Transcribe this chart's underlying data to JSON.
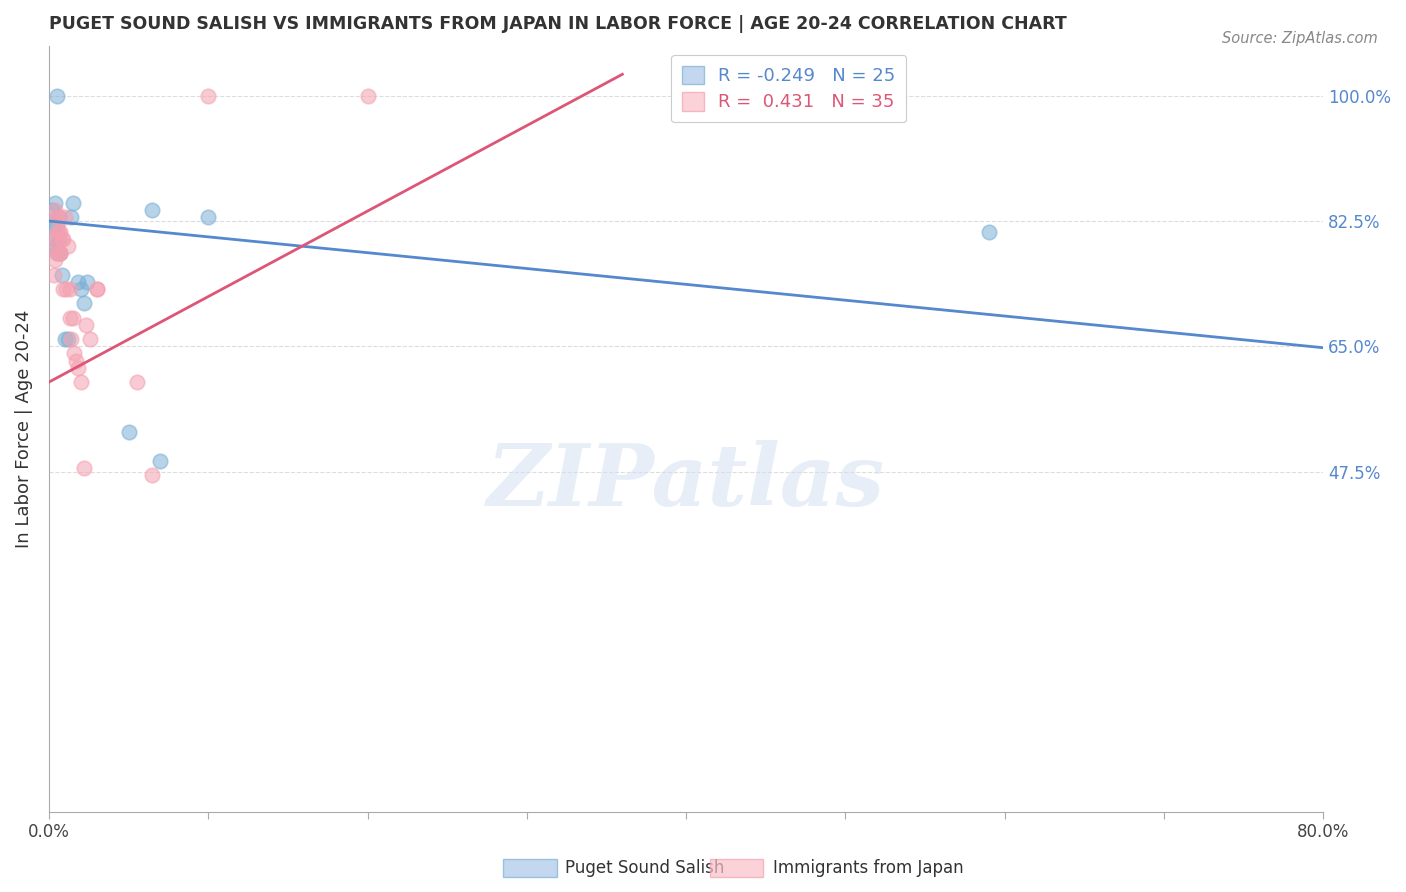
{
  "title": "PUGET SOUND SALISH VS IMMIGRANTS FROM JAPAN IN LABOR FORCE | AGE 20-24 CORRELATION CHART",
  "source": "Source: ZipAtlas.com",
  "ylabel": "In Labor Force | Age 20-24",
  "xlim": [
    0.0,
    0.8
  ],
  "ylim": [
    0.0,
    1.07
  ],
  "xticks": [
    0.0,
    0.1,
    0.2,
    0.3,
    0.4,
    0.5,
    0.6,
    0.7,
    0.8
  ],
  "xticklabels": [
    "0.0%",
    "",
    "",
    "",
    "",
    "",
    "",
    "",
    "80.0%"
  ],
  "ytick_positions": [
    0.475,
    0.65,
    0.825,
    1.0
  ],
  "ytick_labels": [
    "47.5%",
    "65.0%",
    "82.5%",
    "100.0%"
  ],
  "grid_color": "#dddddd",
  "background_color": "#ffffff",
  "watermark": "ZIPatlas",
  "blue_color": "#7bafd4",
  "pink_color": "#f4a0b0",
  "blue_line_color": "#5588cc",
  "pink_line_color": "#dd5577",
  "legend_blue_R": "-0.249",
  "legend_blue_N": "25",
  "legend_pink_R": "0.431",
  "legend_pink_N": "35",
  "blue_scatter_x": [
    0.002,
    0.003,
    0.003,
    0.004,
    0.004,
    0.005,
    0.005,
    0.006,
    0.006,
    0.007,
    0.008,
    0.01,
    0.012,
    0.014,
    0.015,
    0.018,
    0.02,
    0.022,
    0.024,
    0.05,
    0.065,
    0.07,
    0.1,
    0.59,
    0.005
  ],
  "blue_scatter_y": [
    0.84,
    0.82,
    0.8,
    0.79,
    0.85,
    0.82,
    0.78,
    0.8,
    0.83,
    0.78,
    0.75,
    0.66,
    0.66,
    0.83,
    0.85,
    0.74,
    0.73,
    0.71,
    0.74,
    0.53,
    0.84,
    0.49,
    0.83,
    0.81,
    1.0
  ],
  "pink_scatter_x": [
    0.002,
    0.003,
    0.004,
    0.004,
    0.004,
    0.005,
    0.005,
    0.005,
    0.006,
    0.006,
    0.007,
    0.007,
    0.007,
    0.008,
    0.009,
    0.009,
    0.01,
    0.011,
    0.012,
    0.013,
    0.013,
    0.014,
    0.015,
    0.016,
    0.017,
    0.018,
    0.02,
    0.022,
    0.023,
    0.026,
    0.03,
    0.03,
    0.055,
    0.065,
    0.1
  ],
  "pink_scatter_y": [
    0.79,
    0.75,
    0.84,
    0.8,
    0.77,
    0.83,
    0.81,
    0.78,
    0.83,
    0.81,
    0.78,
    0.81,
    0.78,
    0.8,
    0.73,
    0.8,
    0.83,
    0.73,
    0.79,
    0.69,
    0.73,
    0.66,
    0.69,
    0.64,
    0.63,
    0.62,
    0.6,
    0.48,
    0.68,
    0.66,
    0.73,
    0.73,
    0.6,
    0.47,
    1.0
  ],
  "pink_outlier_x": [
    0.2
  ],
  "pink_outlier_y": [
    1.0
  ],
  "blue_line_x": [
    0.0,
    0.8
  ],
  "blue_line_y": [
    0.825,
    0.648
  ],
  "pink_line_x": [
    0.0,
    0.36
  ],
  "pink_line_y": [
    0.6,
    1.03
  ]
}
